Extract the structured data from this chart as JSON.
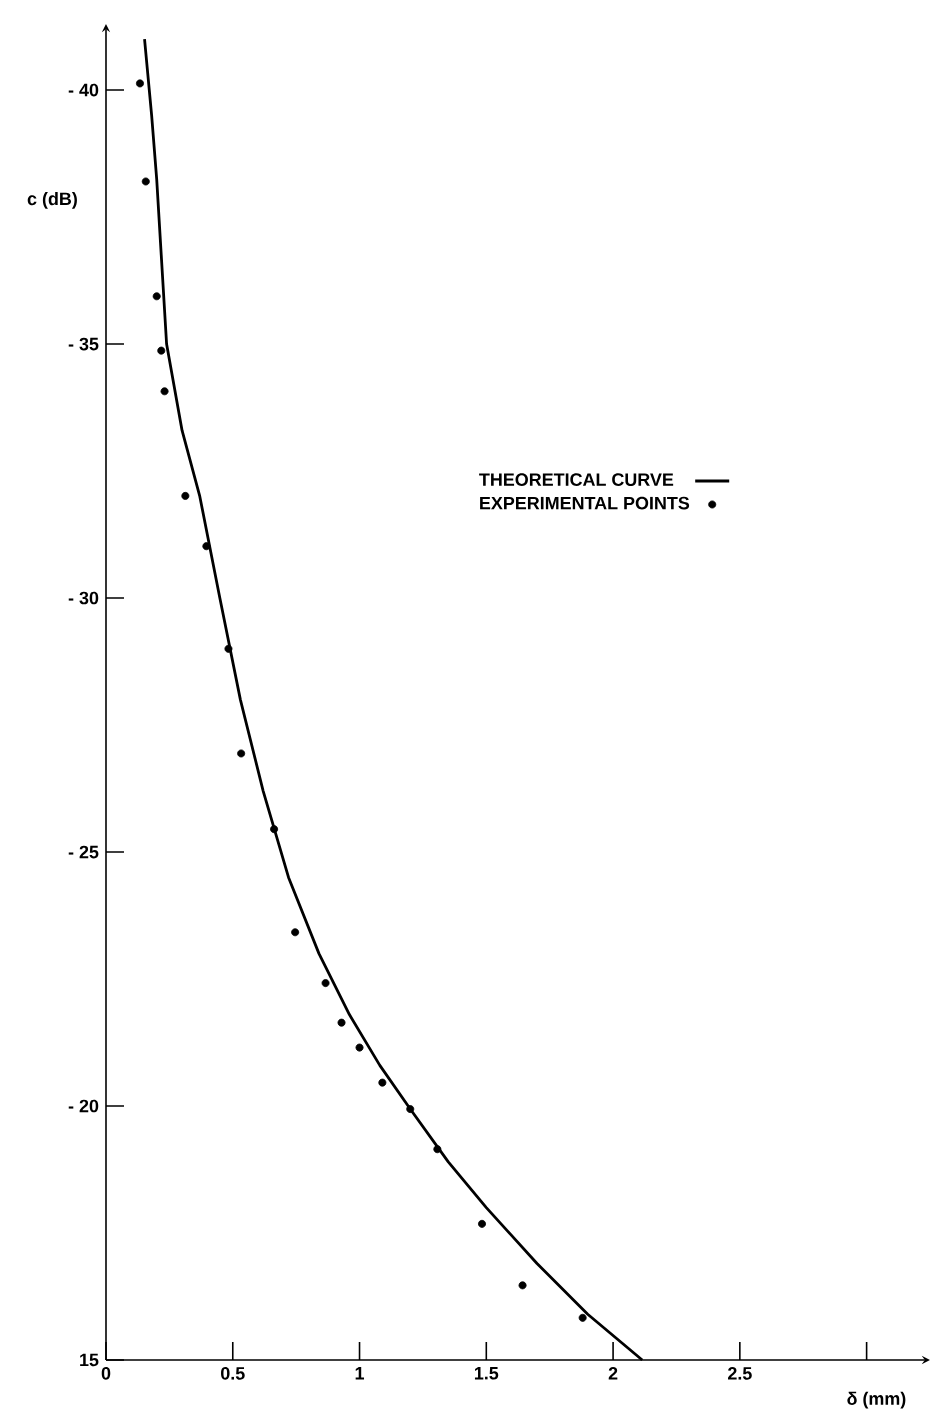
{
  "chart_data": {
    "type": "line",
    "xlabel": "δ (mm)",
    "ylabel": "c (dB)",
    "xlim": [
      0,
      3.25
    ],
    "ylim": [
      -15,
      -41.3
    ],
    "xticks": [
      0,
      0.5,
      1,
      1.5,
      2,
      2.5,
      {
        "value": 3,
        "label": null
      }
    ],
    "yticks": [
      {
        "value": -40,
        "label": "- 40"
      },
      {
        "value": -35,
        "label": "- 35"
      },
      {
        "value": -30,
        "label": "- 30"
      },
      {
        "value": -25,
        "label": "- 25"
      },
      {
        "value": -20,
        "label": "- 20"
      },
      {
        "value": -15,
        "label": "15"
      }
    ],
    "legend": "right",
    "line_style": "solid",
    "series": [
      {
        "name": "THEORETICAL CURVE",
        "type": "line",
        "color": "#000000",
        "marker": "none",
        "x": [
          0.152,
          0.18,
          0.2,
          0.239,
          0.3,
          0.37,
          0.449,
          0.53,
          0.62,
          0.72,
          0.84,
          0.96,
          1.08,
          1.2,
          1.35,
          1.5,
          1.7,
          1.9,
          2.115
        ],
        "values": [
          -41.0,
          -39.5,
          -38.24,
          -35.0,
          -33.3,
          -32.0,
          -30.0,
          -28.0,
          -26.2,
          -24.5,
          -23.0,
          -21.8,
          -20.8,
          -19.94,
          -18.9,
          -18.0,
          -16.9,
          -15.9,
          -15.0
        ]
      },
      {
        "name": "EXPERIMENTAL POINTS",
        "type": "scatter",
        "color": "#000000",
        "marker": "circle",
        "x": [
          0.134,
          0.157,
          0.2,
          0.218,
          0.231,
          0.313,
          0.396,
          0.483,
          0.533,
          0.663,
          0.746,
          0.866,
          0.929,
          1.0,
          1.09,
          1.2,
          1.307,
          1.483,
          1.643,
          1.88
        ],
        "values": [
          -40.13,
          -38.2,
          -35.94,
          -34.87,
          -34.07,
          -32.01,
          -31.02,
          -29.0,
          -26.94,
          -25.45,
          -23.42,
          -22.42,
          -21.64,
          -21.15,
          -20.46,
          -19.94,
          -19.15,
          -17.68,
          -16.47,
          -15.83
        ]
      }
    ]
  }
}
